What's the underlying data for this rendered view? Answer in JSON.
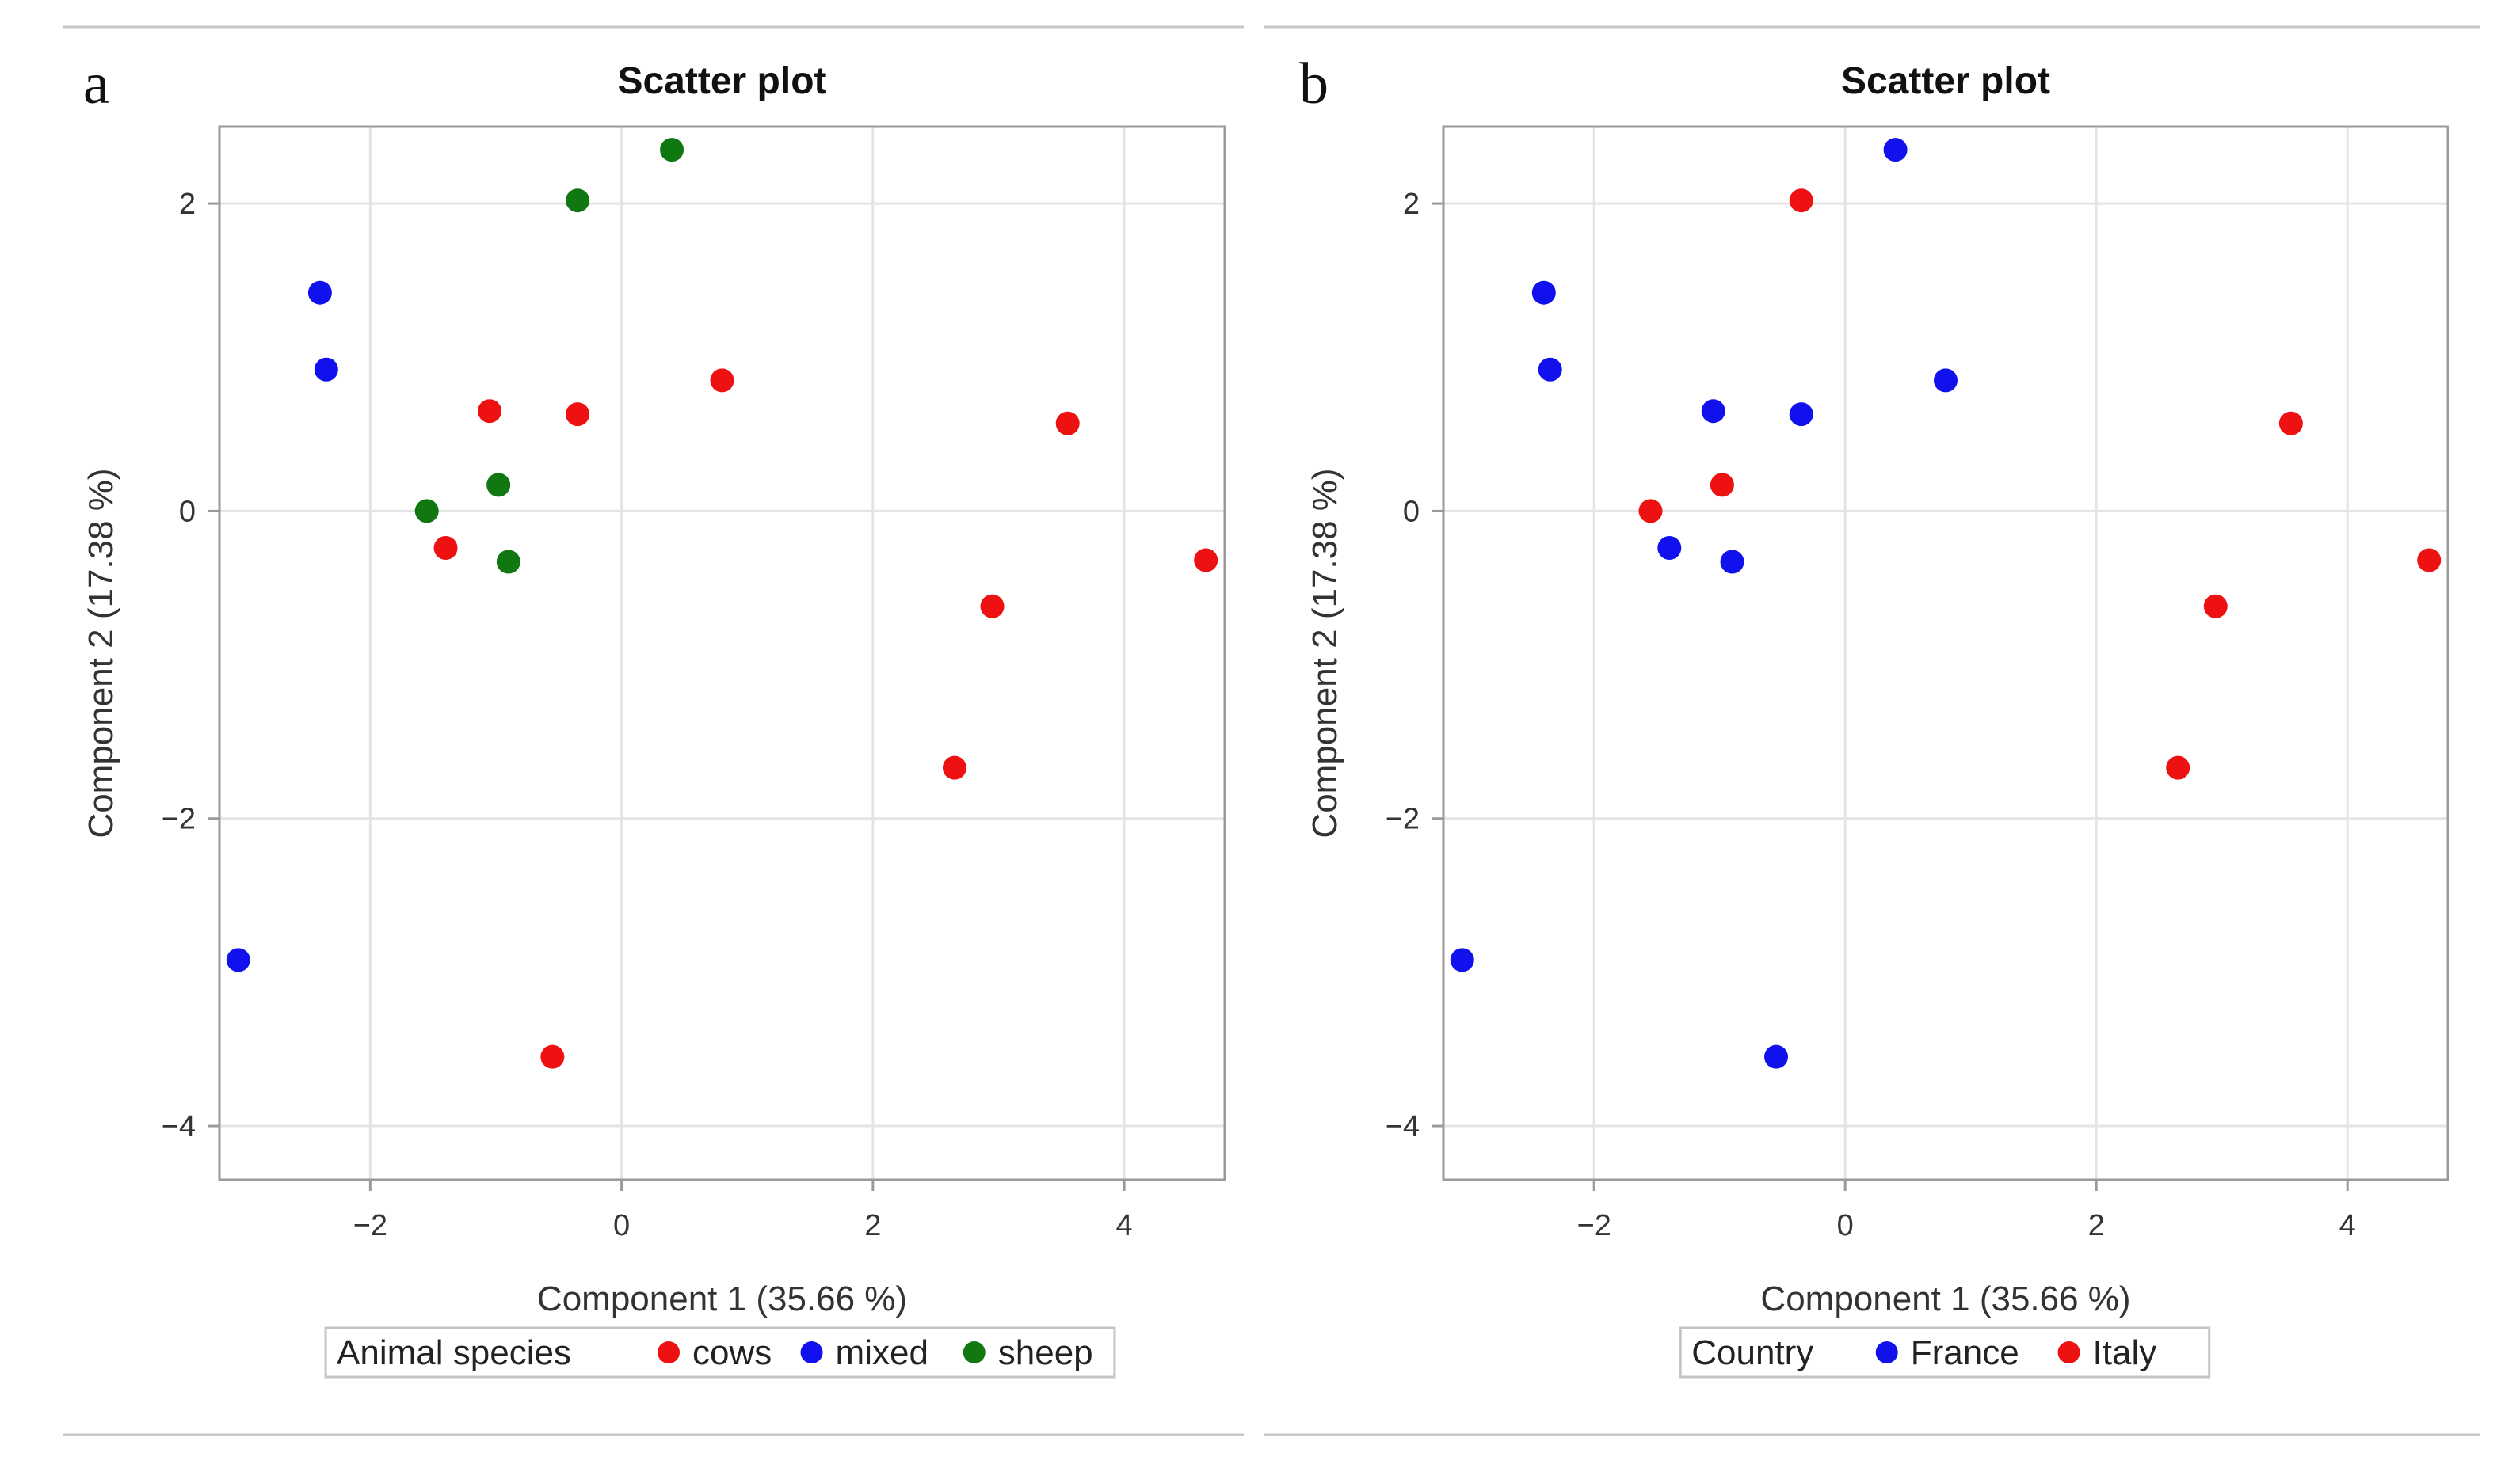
{
  "chart_data": [
    {
      "panel_label": "a",
      "type": "scatter",
      "title": "Scatter plot",
      "xlabel": "Component 1 (35.66 %)",
      "ylabel": "Component 2 (17.38 %)",
      "xlim": [
        -3.2,
        4.8
      ],
      "ylim": [
        -4.35,
        2.5
      ],
      "xticks": [
        -2,
        0,
        2,
        4
      ],
      "yticks": [
        -4,
        -2,
        0,
        2
      ],
      "xtick_labels": [
        "−2",
        "0",
        "2",
        "4"
      ],
      "ytick_labels": [
        "−4",
        "−2",
        "0",
        "2"
      ],
      "grid": true,
      "legend": {
        "title": "Animal species",
        "placement": "bottom-center",
        "entries": [
          {
            "name": "cows",
            "color": "#ee1111"
          },
          {
            "name": "mixed",
            "color": "#1111ee"
          },
          {
            "name": "sheep",
            "color": "#117711"
          }
        ]
      },
      "series": [
        {
          "name": "cows",
          "color": "#ee1111",
          "points": [
            [
              0.8,
              0.85
            ],
            [
              -1.05,
              0.65
            ],
            [
              -0.35,
              0.63
            ],
            [
              3.55,
              0.57
            ],
            [
              4.65,
              -0.32
            ],
            [
              2.95,
              -0.62
            ],
            [
              2.65,
              -1.67
            ],
            [
              -1.4,
              -0.24
            ],
            [
              -0.55,
              -3.55
            ]
          ]
        },
        {
          "name": "mixed",
          "color": "#1111ee",
          "points": [
            [
              -2.4,
              1.42
            ],
            [
              -2.35,
              0.92
            ],
            [
              -3.05,
              -2.92
            ]
          ]
        },
        {
          "name": "sheep",
          "color": "#117711",
          "points": [
            [
              0.4,
              2.35
            ],
            [
              -0.35,
              2.02
            ],
            [
              -0.98,
              0.17
            ],
            [
              -1.55,
              0.0
            ],
            [
              -0.9,
              -0.33
            ]
          ]
        }
      ]
    },
    {
      "panel_label": "b",
      "type": "scatter",
      "title": "Scatter plot",
      "xlabel": "Component 1 (35.66 %)",
      "ylabel": "Component 2 (17.38 %)",
      "xlim": [
        -3.2,
        4.8
      ],
      "ylim": [
        -4.35,
        2.5
      ],
      "xticks": [
        -2,
        0,
        2,
        4
      ],
      "yticks": [
        -4,
        -2,
        0,
        2
      ],
      "xtick_labels": [
        "−2",
        "0",
        "2",
        "4"
      ],
      "ytick_labels": [
        "−4",
        "−2",
        "0",
        "2"
      ],
      "grid": true,
      "legend": {
        "title": "Country",
        "placement": "bottom-center",
        "entries": [
          {
            "name": "France",
            "color": "#1111ee"
          },
          {
            "name": "Italy",
            "color": "#ee1111"
          }
        ]
      },
      "series": [
        {
          "name": "France",
          "color": "#1111ee",
          "points": [
            [
              0.4,
              2.35
            ],
            [
              -2.4,
              1.42
            ],
            [
              -2.35,
              0.92
            ],
            [
              0.8,
              0.85
            ],
            [
              -1.05,
              0.65
            ],
            [
              -0.35,
              0.63
            ],
            [
              -1.4,
              -0.24
            ],
            [
              -0.9,
              -0.33
            ],
            [
              -3.05,
              -2.92
            ],
            [
              -0.55,
              -3.55
            ]
          ]
        },
        {
          "name": "Italy",
          "color": "#ee1111",
          "points": [
            [
              -0.35,
              2.02
            ],
            [
              3.55,
              0.57
            ],
            [
              -0.98,
              0.17
            ],
            [
              -1.55,
              0.0
            ],
            [
              4.65,
              -0.32
            ],
            [
              2.95,
              -0.62
            ],
            [
              2.65,
              -1.67
            ]
          ]
        }
      ]
    }
  ]
}
